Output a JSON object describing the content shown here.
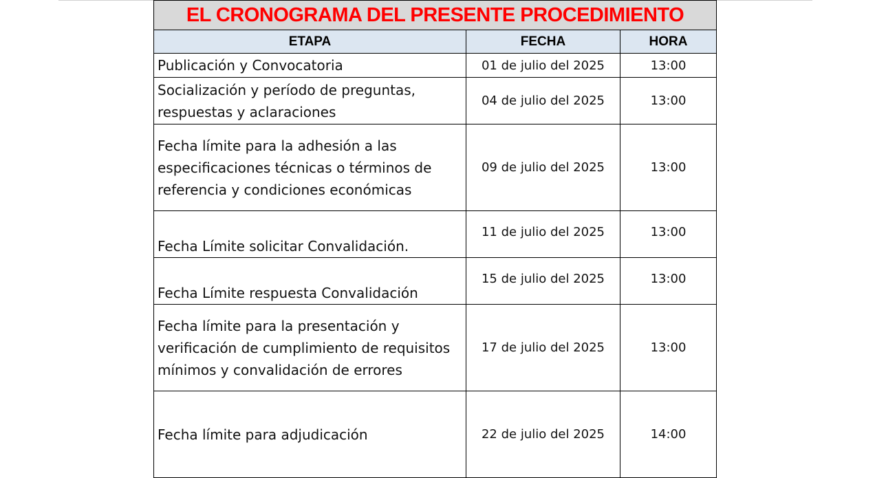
{
  "title": "EL CRONOGRAMA DEL PRESENTE PROCEDIMIENTO",
  "headers": {
    "etapa": "ETAPA",
    "fecha": "FECHA",
    "hora": "HORA"
  },
  "rows": [
    {
      "etapa": "Publicación y Convocatoria",
      "fecha": "01 de julio del 2025",
      "hora": "13:00"
    },
    {
      "etapa": "Socialización y período de preguntas, respuestas y aclaraciones",
      "fecha": "04 de julio del 2025",
      "hora": "13:00"
    },
    {
      "etapa": "Fecha límite para la adhesión a las especificaciones técnicas o términos de referencia y condiciones económicas",
      "fecha": "09 de julio del 2025",
      "hora": "13:00"
    },
    {
      "etapa": "Fecha Límite solicitar Convalidación.",
      "fecha": "11 de julio del 2025",
      "hora": "13:00"
    },
    {
      "etapa": "Fecha Límite respuesta Convalidación",
      "fecha": "15 de julio del 2025",
      "hora": "13:00"
    },
    {
      "etapa": "Fecha límite para la presentación y verificación de cumplimiento de requisitos mínimos y convalidación de errores",
      "fecha": "17 de julio del 2025",
      "hora": "13:00"
    },
    {
      "etapa": "Fecha límite para adjudicación",
      "fecha": "22 de julio del 2025",
      "hora": "14:00"
    }
  ]
}
